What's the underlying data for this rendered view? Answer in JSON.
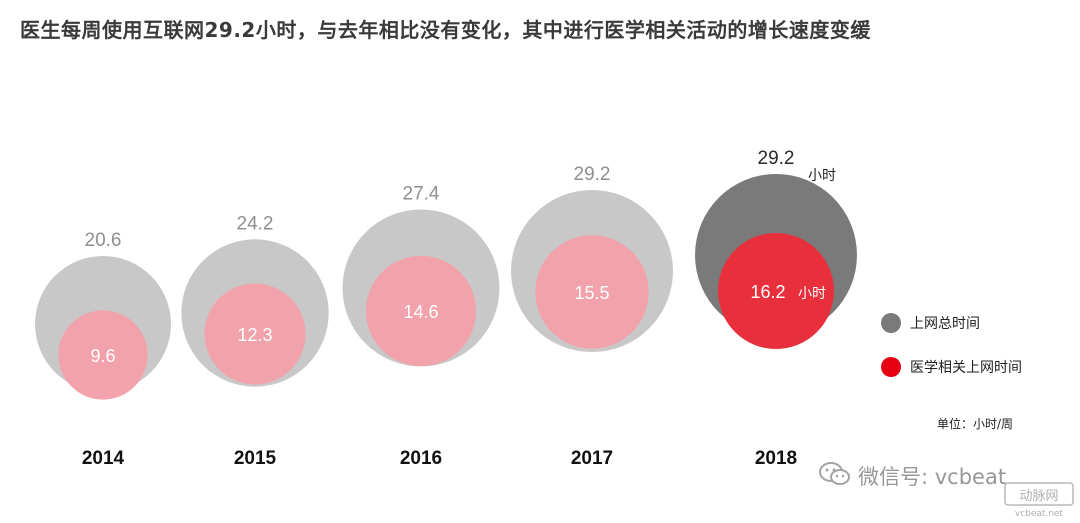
{
  "title": "医生每周使用互联网29.2小时，与去年相比没有变化，其中进行医学相关活动的增长速度变缓",
  "chart_data": {
    "type": "bubble",
    "categories": [
      "2014",
      "2015",
      "2016",
      "2017",
      "2018"
    ],
    "series": [
      {
        "name": "上网总时间",
        "values": [
          20.6,
          24.2,
          27.4,
          29.2,
          29.2
        ]
      },
      {
        "name": "医学相关上网时间",
        "values": [
          9.6,
          12.3,
          14.6,
          15.5,
          16.2
        ]
      }
    ],
    "unit_label": "小时",
    "unit_note": "单位：小时/周",
    "legend_position": "right",
    "colors": {
      "outer": "#c8c8c8",
      "inner": "#f2a2aa",
      "outer_current": "#7a7a7a",
      "inner_current": "#e8303c",
      "legend_total": "#7a7a7a",
      "legend_medical": "#e60012"
    }
  },
  "watermark": {
    "text": "微信号: vcbeat",
    "icon": "wechat-icon",
    "logo_text": "动脉网",
    "logo_url_text": "vcbeat.net"
  }
}
